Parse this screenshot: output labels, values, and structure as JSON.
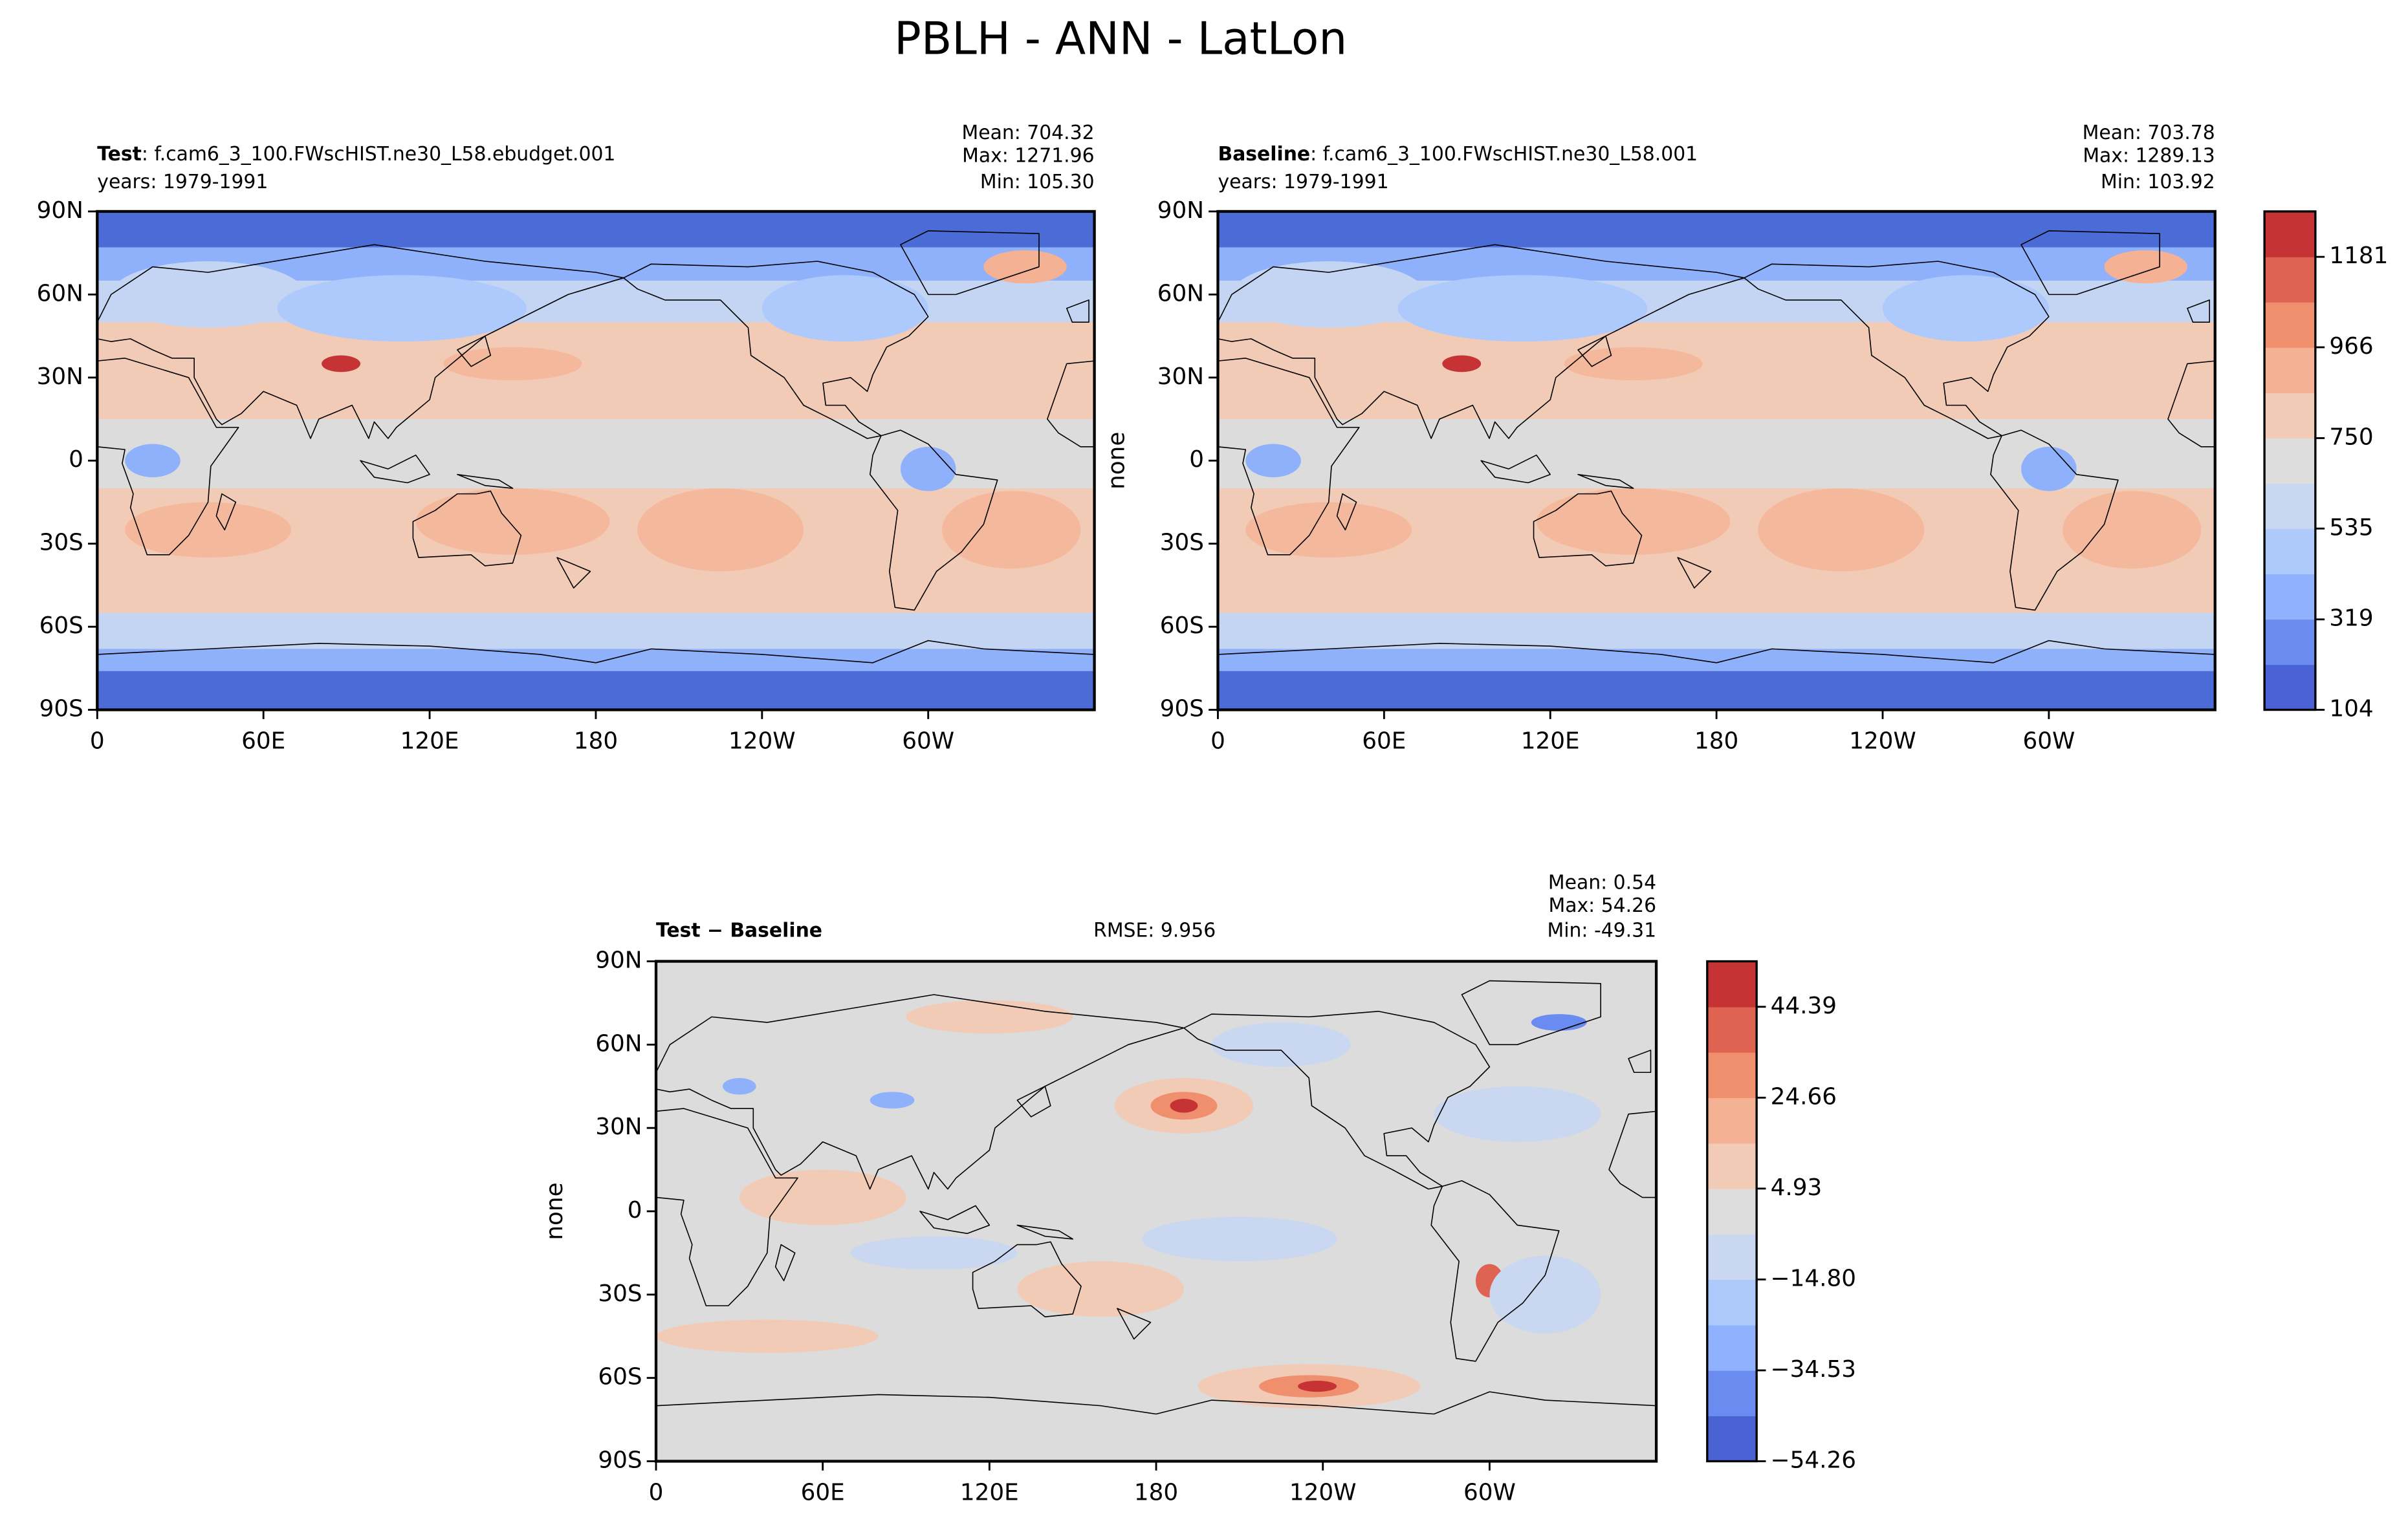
{
  "title": "PBLH - ANN - LatLon",
  "chart_data": [
    {
      "type": "map",
      "title": [
        "Test",
        ": f.cam6_3_100.FWscHIST.ne30_L58.ebudget.001"
      ],
      "subtitle": "years: 1979-1991",
      "stats": [
        "Mean: 704.32",
        "Max: 1271.96",
        "Min: 105.30"
      ],
      "xlim": [
        0,
        360
      ],
      "xticks": [
        0,
        {
          "value": 60,
          "label": "60E"
        },
        {
          "value": 120,
          "label": "120E"
        },
        180,
        {
          "value": 240,
          "label": "120W"
        },
        {
          "value": 300,
          "label": "60W"
        }
      ],
      "ylim": [
        -90,
        90
      ],
      "yticks": [
        {
          "value": -90,
          "label": "90S"
        },
        {
          "value": -60,
          "label": "60S"
        },
        {
          "value": -30,
          "label": "30S"
        },
        0,
        {
          "value": 30,
          "label": "30N"
        },
        {
          "value": 60,
          "label": "60N"
        },
        {
          "value": 90,
          "label": "90N"
        }
      ]
    },
    {
      "type": "map",
      "title": [
        "Baseline",
        ": f.cam6_3_100.FWscHIST.ne30_L58.001"
      ],
      "subtitle": "years: 1979-1991",
      "stats": [
        "Mean: 703.78",
        "Max: 1289.13",
        "Min: 103.92"
      ],
      "ylabel": "none",
      "xlim": [
        0,
        360
      ],
      "xticks": [
        0,
        {
          "value": 60,
          "label": "60E"
        },
        {
          "value": 120,
          "label": "120E"
        },
        180,
        {
          "value": 240,
          "label": "120W"
        },
        {
          "value": 300,
          "label": "60W"
        }
      ],
      "ylim": [
        -90,
        90
      ],
      "yticks": [
        {
          "value": -90,
          "label": "90S"
        },
        {
          "value": -60,
          "label": "60S"
        },
        {
          "value": -30,
          "label": "30S"
        },
        0,
        {
          "value": 30,
          "label": "30N"
        },
        {
          "value": 60,
          "label": "60N"
        },
        {
          "value": 90,
          "label": "90N"
        }
      ]
    },
    {
      "type": "colorbar",
      "clim": [
        104,
        1289
      ],
      "cticks": [
        104,
        319,
        535,
        750,
        966,
        1181
      ],
      "colors": [
        "#4a62d3",
        "#6a8bef",
        "#8fb1fe",
        "#aec9fc",
        "#c9d7f0",
        "#dddddd",
        "#f2cbb7",
        "#f5b194",
        "#f08f6e",
        "#de6350",
        "#c53334"
      ]
    },
    {
      "type": "map",
      "title": [
        "Test − Baseline"
      ],
      "annotation": "RMSE: 9.956",
      "stats": [
        "Mean:  0.54",
        "Max: 54.26",
        "Min: -49.31"
      ],
      "ylabel": "none",
      "xlim": [
        0,
        360
      ],
      "xticks": [
        0,
        {
          "value": 60,
          "label": "60E"
        },
        {
          "value": 120,
          "label": "120E"
        },
        180,
        {
          "value": 240,
          "label": "120W"
        },
        {
          "value": 300,
          "label": "60W"
        }
      ],
      "ylim": [
        -90,
        90
      ],
      "yticks": [
        {
          "value": -90,
          "label": "90S"
        },
        {
          "value": -60,
          "label": "60S"
        },
        {
          "value": -30,
          "label": "30S"
        },
        0,
        {
          "value": 30,
          "label": "30N"
        },
        {
          "value": 60,
          "label": "60N"
        },
        {
          "value": 90,
          "label": "90N"
        }
      ]
    },
    {
      "type": "colorbar",
      "clim": [
        -54.26,
        54.26
      ],
      "cticks": [
        {
          "value": -54.26,
          "label": "−54.26"
        },
        {
          "value": -34.53,
          "label": "−34.53"
        },
        {
          "value": -14.8,
          "label": "−14.80"
        },
        4.93,
        24.66,
        44.39
      ],
      "colors": [
        "#4a62d3",
        "#6a8bef",
        "#8fb1fe",
        "#aec9fc",
        "#c9d7f0",
        "#dddddd",
        "#f2cbb7",
        "#f5b194",
        "#f08f6e",
        "#de6350",
        "#c53334"
      ]
    }
  ]
}
